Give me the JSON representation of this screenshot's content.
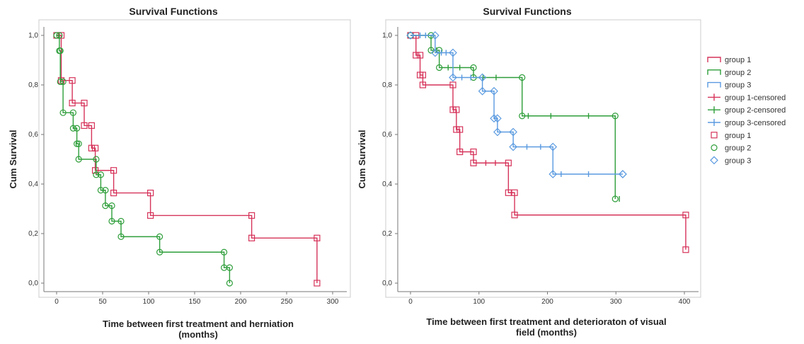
{
  "colors": {
    "group1": "#d6335a",
    "group2": "#2e9e3a",
    "group3": "#5a9ae0",
    "axis": "#777777"
  },
  "chart_data": [
    {
      "type": "line",
      "title": "Survival Functions",
      "xlabel": "Time between first treatment and herniation",
      "xlabel2": "(months)",
      "ylabel": "Cum Survival",
      "xlim": [
        0,
        300
      ],
      "ylim": [
        0,
        1
      ],
      "xticks": [
        "0",
        "50",
        "100",
        "150",
        "200",
        "250",
        "300"
      ],
      "yticks": [
        "0,0",
        "0,2",
        "0,4",
        "0,6",
        "0,8",
        "1,0"
      ],
      "series": [
        {
          "name": "group 1",
          "color": "group1",
          "marker": "square",
          "steps": [
            [
              0,
              1.0
            ],
            [
              5,
              0.818
            ],
            [
              17,
              0.727
            ],
            [
              30,
              0.636
            ],
            [
              38,
              0.545
            ],
            [
              42,
              0.455
            ],
            [
              62,
              0.364
            ],
            [
              102,
              0.273
            ],
            [
              212,
              0.182
            ],
            [
              283,
              0.0
            ]
          ],
          "censored": []
        },
        {
          "name": "group 2",
          "color": "group2",
          "marker": "circle",
          "steps": [
            [
              0,
              1.0
            ],
            [
              3,
              0.938
            ],
            [
              4,
              0.813
            ],
            [
              7,
              0.688
            ],
            [
              18,
              0.625
            ],
            [
              22,
              0.5625
            ],
            [
              24,
              0.5
            ],
            [
              43,
              0.4375
            ],
            [
              48,
              0.375
            ],
            [
              53,
              0.3125
            ],
            [
              60,
              0.25
            ],
            [
              70,
              0.1875
            ],
            [
              112,
              0.125
            ],
            [
              182,
              0.0625
            ],
            [
              188,
              0.0
            ]
          ],
          "censored": []
        }
      ]
    },
    {
      "type": "line",
      "title": "Survival Functions",
      "xlabel": "Time between first treatment and deterioraton of visual",
      "xlabel2": "field (months)",
      "ylabel": "Cum Survival",
      "xlim": [
        0,
        400
      ],
      "ylim": [
        0,
        1
      ],
      "xticks": [
        "0",
        "100",
        "200",
        "300",
        "400"
      ],
      "yticks": [
        "0,0",
        "0,2",
        "0,4",
        "0,6",
        "0,8",
        "1,0"
      ],
      "series": [
        {
          "name": "group 1",
          "color": "group1",
          "marker": "square",
          "steps": [
            [
              0,
              1.0
            ],
            [
              8,
              0.92
            ],
            [
              14,
              0.84
            ],
            [
              18,
              0.8
            ],
            [
              62,
              0.7
            ],
            [
              67,
              0.62
            ],
            [
              72,
              0.53
            ],
            [
              92,
              0.485
            ],
            [
              143,
              0.365
            ],
            [
              152,
              0.275
            ],
            [
              402,
              0.135
            ]
          ],
          "censored": [
            [
              110,
              0.485
            ],
            [
              124,
              0.485
            ]
          ]
        },
        {
          "name": "group 2",
          "color": "group2",
          "marker": "circle",
          "steps": [
            [
              0,
              1.0
            ],
            [
              30,
              0.94
            ],
            [
              42,
              0.87
            ],
            [
              92,
              0.83
            ],
            [
              163,
              0.675
            ],
            [
              299,
              0.34
            ]
          ],
          "censored": [
            [
              38,
              0.94
            ],
            [
              55,
              0.87
            ],
            [
              72,
              0.87
            ],
            [
              106,
              0.83
            ],
            [
              125,
              0.83
            ],
            [
              172,
              0.675
            ],
            [
              205,
              0.675
            ],
            [
              260,
              0.675
            ],
            [
              305,
              0.34
            ]
          ]
        },
        {
          "name": "group 3",
          "color": "group3",
          "marker": "diamond",
          "steps": [
            [
              0,
              1.0
            ],
            [
              36,
              0.93
            ],
            [
              62,
              0.83
            ],
            [
              105,
              0.775
            ],
            [
              122,
              0.665
            ],
            [
              127,
              0.61
            ],
            [
              150,
              0.55
            ],
            [
              208,
              0.44
            ],
            [
              310,
              0.44
            ]
          ],
          "censored": [
            [
              14,
              1.0
            ],
            [
              22,
              1.0
            ],
            [
              45,
              0.93
            ],
            [
              52,
              0.93
            ],
            [
              75,
              0.83
            ],
            [
              88,
              0.83
            ],
            [
              170,
              0.55
            ],
            [
              190,
              0.55
            ],
            [
              220,
              0.44
            ],
            [
              260,
              0.44
            ]
          ]
        }
      ]
    }
  ],
  "legend": {
    "items": [
      {
        "label": "group 1",
        "kind": "line",
        "color": "group1"
      },
      {
        "label": "group 2",
        "kind": "line",
        "color": "group2"
      },
      {
        "label": "group 3",
        "kind": "line",
        "color": "group3"
      },
      {
        "label": "group 1-censored",
        "kind": "cross",
        "color": "group1"
      },
      {
        "label": "group 2-censored",
        "kind": "cross",
        "color": "group2"
      },
      {
        "label": "group 3-censored",
        "kind": "cross",
        "color": "group3"
      },
      {
        "label": "group 1",
        "kind": "square",
        "color": "group1"
      },
      {
        "label": "group 2",
        "kind": "circle",
        "color": "group2"
      },
      {
        "label": "group 3",
        "kind": "diamond",
        "color": "group3"
      }
    ]
  }
}
